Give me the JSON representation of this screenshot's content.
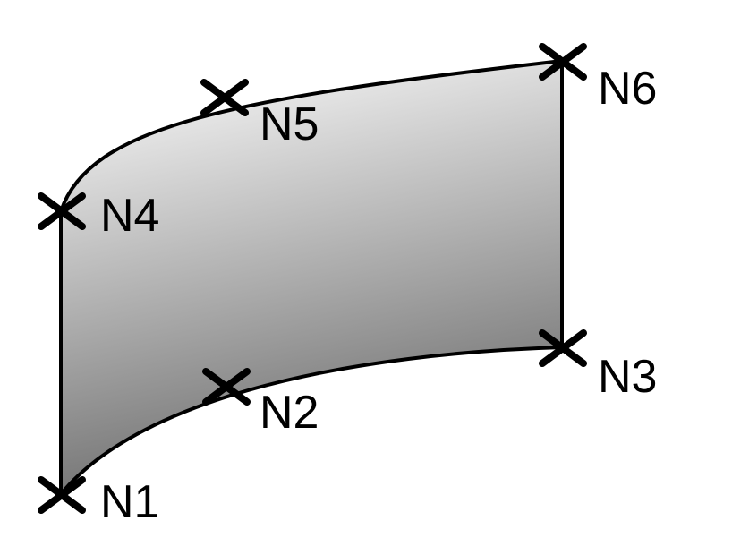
{
  "diagram": {
    "nodes": [
      {
        "id": "N1",
        "label": "N1"
      },
      {
        "id": "N2",
        "label": "N2"
      },
      {
        "id": "N3",
        "label": "N3"
      },
      {
        "id": "N4",
        "label": "N4"
      },
      {
        "id": "N5",
        "label": "N5"
      },
      {
        "id": "N6",
        "label": "N6"
      }
    ],
    "edges": [
      {
        "from": "N1",
        "to": "N3",
        "via": "N2",
        "shape": "curve"
      },
      {
        "from": "N3",
        "to": "N6",
        "shape": "line"
      },
      {
        "from": "N4",
        "to": "N6",
        "via": "N5",
        "shape": "curve"
      },
      {
        "from": "N1",
        "to": "N4",
        "shape": "line"
      }
    ],
    "surface_fill": {
      "top_color": "#ffffff",
      "bottom_color": "#707070"
    }
  }
}
